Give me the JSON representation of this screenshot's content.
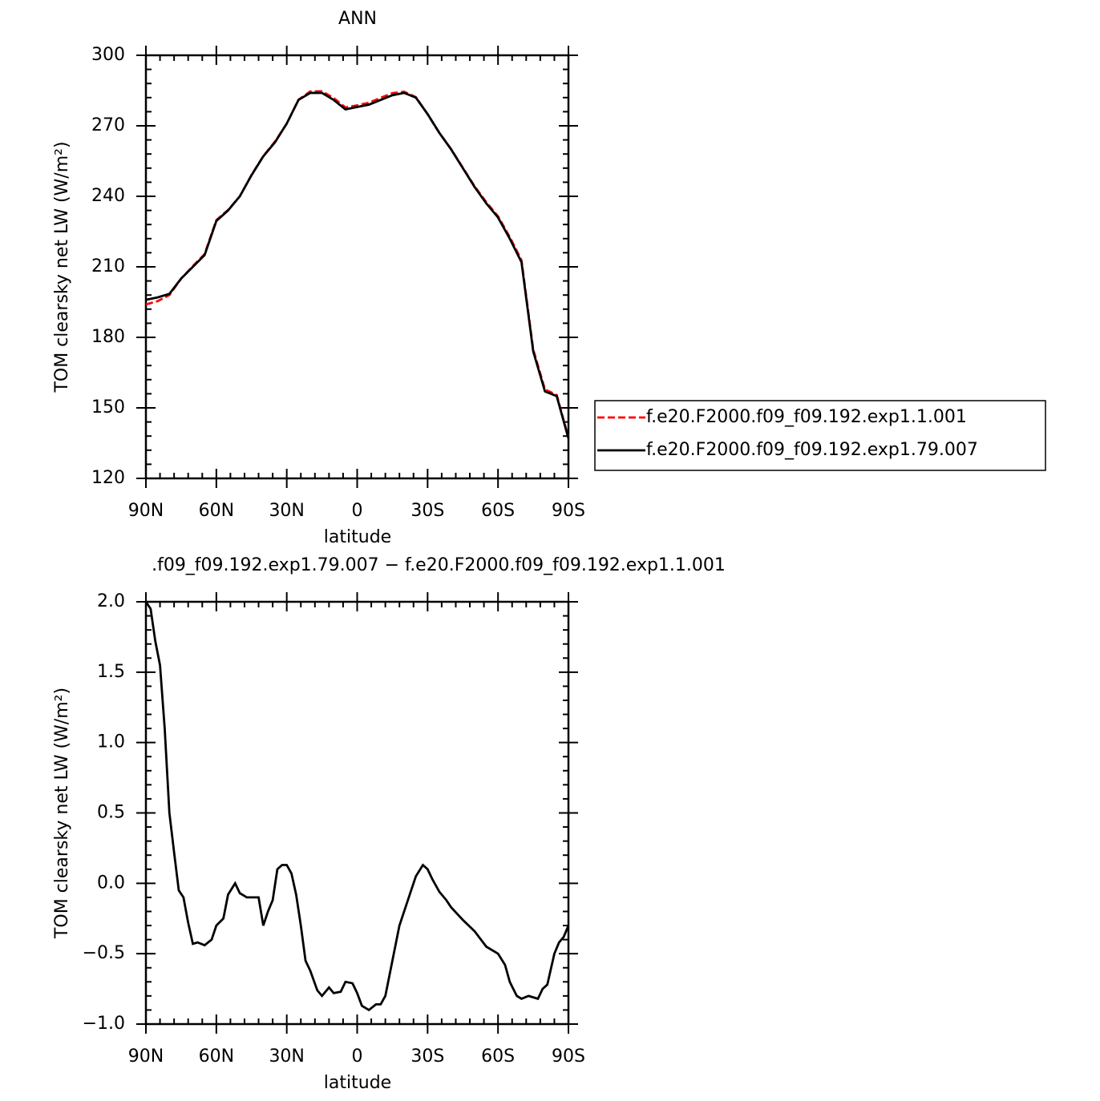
{
  "chart_data": [
    {
      "type": "line",
      "title": "ANN",
      "xlabel": "latitude",
      "ylabel": "TOM clearsky net LW (W/m²)",
      "x": [
        90,
        85,
        80,
        75,
        70,
        65,
        60,
        55,
        50,
        45,
        40,
        35,
        30,
        25,
        20,
        15,
        10,
        5,
        0,
        -5,
        -10,
        -15,
        -20,
        -25,
        -30,
        -35,
        -40,
        -45,
        -50,
        -55,
        -60,
        -65,
        -70,
        -75,
        -80,
        -85,
        -90
      ],
      "series": [
        {
          "name": "f.e20.F2000.f09_f09.192.exp1.1.001",
          "color": "#ff0000",
          "dash": true,
          "values": [
            194,
            195.4,
            198,
            205,
            210.3,
            215.4,
            229.9,
            234.2,
            240,
            249.1,
            257.1,
            263.3,
            270.9,
            281.1,
            284.6,
            284.7,
            281.8,
            277.8,
            278.7,
            279.8,
            281.9,
            283.9,
            284.5,
            282.2,
            274.9,
            267,
            260.1,
            252.2,
            244.3,
            237.5,
            231.5,
            222.7,
            212.8,
            174.8,
            157.8,
            155.5,
            137.3
          ]
        },
        {
          "name": "f.e20.F2000.f09_f09.192.exp1.79.007",
          "color": "#000000",
          "dash": false,
          "values": [
            196,
            197,
            198.5,
            205,
            210,
            215,
            229.5,
            234,
            240,
            249,
            257,
            263,
            271,
            281,
            284,
            284,
            281,
            277,
            278,
            279,
            281,
            283,
            284,
            282,
            275,
            267,
            260,
            252,
            244,
            237,
            231,
            222,
            212,
            174,
            157,
            155,
            137
          ]
        }
      ],
      "xlim": [
        90,
        -90
      ],
      "xticks": [
        {
          "value": 90,
          "label": "90N"
        },
        {
          "value": 60,
          "label": "60N"
        },
        {
          "value": 30,
          "label": "30N"
        },
        0,
        {
          "value": -30,
          "label": "30S"
        },
        {
          "value": -60,
          "label": "60S"
        },
        {
          "value": -90,
          "label": "90S"
        }
      ],
      "ylim": [
        120,
        300
      ],
      "yticks": [
        120,
        150,
        180,
        210,
        240,
        270,
        300
      ],
      "legend": "right"
    },
    {
      "type": "line",
      "title": ".f09_f09.192.exp1.79.007 − f.e20.F2000.f09_f09.192.exp1.1.001",
      "xlabel": "latitude",
      "ylabel": "TOM clearsky net LW (W/m²)",
      "x": [
        90,
        88,
        86,
        84,
        82,
        80,
        78,
        76,
        74,
        72,
        70,
        68,
        65,
        62,
        60,
        57,
        55,
        52,
        50,
        47,
        45,
        42,
        40,
        38,
        36,
        34,
        32,
        30,
        28,
        26,
        24,
        22,
        20,
        17,
        15,
        12,
        10,
        7,
        5,
        2,
        0,
        -2,
        -5,
        -8,
        -10,
        -12,
        -15,
        -18,
        -20,
        -23,
        -25,
        -28,
        -30,
        -32,
        -35,
        -38,
        -40,
        -45,
        -50,
        -55,
        -60,
        -63,
        -65,
        -68,
        -70,
        -73,
        -75,
        -77,
        -79,
        -81,
        -84,
        -86,
        -88,
        -90
      ],
      "series": [
        {
          "color": "#000000",
          "dash": false,
          "values": [
            2.0,
            1.95,
            1.72,
            1.55,
            1.1,
            0.5,
            0.22,
            -0.05,
            -0.1,
            -0.28,
            -0.43,
            -0.42,
            -0.44,
            -0.4,
            -0.3,
            -0.25,
            -0.08,
            0.0,
            -0.07,
            -0.1,
            -0.1,
            -0.1,
            -0.3,
            -0.2,
            -0.12,
            0.1,
            0.13,
            0.13,
            0.07,
            -0.08,
            -0.3,
            -0.55,
            -0.62,
            -0.76,
            -0.8,
            -0.74,
            -0.78,
            -0.77,
            -0.7,
            -0.71,
            -0.78,
            -0.87,
            -0.9,
            -0.86,
            -0.86,
            -0.8,
            -0.55,
            -0.3,
            -0.2,
            -0.05,
            0.05,
            0.13,
            0.1,
            0.03,
            -0.06,
            -0.12,
            -0.17,
            -0.26,
            -0.34,
            -0.45,
            -0.5,
            -0.58,
            -0.7,
            -0.8,
            -0.82,
            -0.8,
            -0.81,
            -0.82,
            -0.75,
            -0.72,
            -0.5,
            -0.42,
            -0.38,
            -0.3
          ]
        }
      ],
      "xlim": [
        90,
        -90
      ],
      "xticks": [
        {
          "value": 90,
          "label": "90N"
        },
        {
          "value": 60,
          "label": "60N"
        },
        {
          "value": 30,
          "label": "30N"
        },
        0,
        {
          "value": -30,
          "label": "30S"
        },
        {
          "value": -60,
          "label": "60S"
        },
        {
          "value": -90,
          "label": "90S"
        }
      ],
      "ylim": [
        -1,
        2
      ],
      "yticks": [
        {
          "value": -1,
          "label": "−1.0"
        },
        {
          "value": -0.5,
          "label": "−0.5"
        },
        {
          "value": 0,
          "label": "0.0"
        },
        0.5,
        {
          "value": 1,
          "label": "1.0"
        },
        1.5,
        {
          "value": 2,
          "label": "2.0"
        }
      ]
    }
  ]
}
